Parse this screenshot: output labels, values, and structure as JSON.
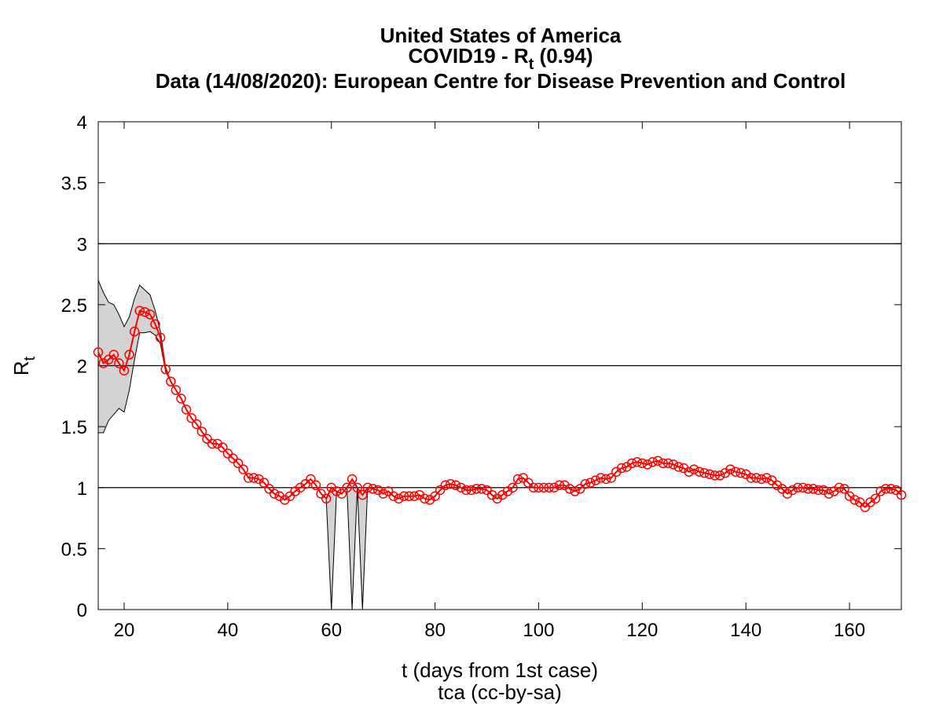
{
  "chart_data": {
    "type": "line",
    "title_line1": "United States of America",
    "title_line2": {
      "text": "COVID19 - R",
      "subscript": "t",
      "suffix": " (0.94)"
    },
    "title_line3": "Data (14/08/2020): European Centre for Disease Prevention and Control",
    "xlabel": "t (days from 1st case)",
    "ylabel": {
      "text": "R",
      "subscript": "t"
    },
    "caption": "tca (cc-by-sa)",
    "xlim": [
      15,
      170
    ],
    "ylim": [
      0,
      4
    ],
    "xticks": [
      20,
      40,
      60,
      80,
      100,
      120,
      140,
      160
    ],
    "yticks": [
      0,
      0.5,
      1,
      1.5,
      2,
      2.5,
      3,
      3.5,
      4
    ],
    "reference_lines": [
      1,
      2,
      3
    ],
    "color": "#ff0000",
    "band_color": "#d3d3d3",
    "x": [
      15,
      16,
      17,
      18,
      19,
      20,
      21,
      22,
      23,
      24,
      25,
      26,
      27,
      28,
      29,
      30,
      31,
      32,
      33,
      34,
      35,
      36,
      37,
      38,
      39,
      40,
      41,
      42,
      43,
      44,
      45,
      46,
      47,
      48,
      49,
      50,
      51,
      52,
      53,
      54,
      55,
      56,
      57,
      58,
      59,
      60,
      61,
      62,
      63,
      64,
      65,
      66,
      67,
      68,
      69,
      70,
      71,
      72,
      73,
      74,
      75,
      76,
      77,
      78,
      79,
      80,
      81,
      82,
      83,
      84,
      85,
      86,
      87,
      88,
      89,
      90,
      91,
      92,
      93,
      94,
      95,
      96,
      97,
      98,
      99,
      100,
      101,
      102,
      103,
      104,
      105,
      106,
      107,
      108,
      109,
      110,
      111,
      112,
      113,
      114,
      115,
      116,
      117,
      118,
      119,
      120,
      121,
      122,
      123,
      124,
      125,
      126,
      127,
      128,
      129,
      130,
      131,
      132,
      133,
      134,
      135,
      136,
      137,
      138,
      139,
      140,
      141,
      142,
      143,
      144,
      145,
      146,
      147,
      148,
      149,
      150,
      151,
      152,
      153,
      154,
      155,
      156,
      157,
      158,
      159,
      160,
      161,
      162,
      163,
      164,
      165,
      166,
      167,
      168,
      169,
      170
    ],
    "values": [
      2.11,
      2.02,
      2.05,
      2.09,
      2.02,
      1.96,
      2.09,
      2.28,
      2.45,
      2.44,
      2.42,
      2.34,
      2.23,
      1.97,
      1.87,
      1.8,
      1.73,
      1.64,
      1.57,
      1.52,
      1.46,
      1.4,
      1.36,
      1.36,
      1.33,
      1.28,
      1.24,
      1.2,
      1.15,
      1.08,
      1.08,
      1.07,
      1.04,
      0.99,
      0.95,
      0.93,
      0.9,
      0.93,
      0.97,
      1.0,
      1.03,
      1.07,
      1.02,
      0.95,
      0.91,
      1.0,
      0.97,
      0.95,
      1.0,
      1.07,
      1.0,
      0.94,
      1.0,
      0.99,
      0.98,
      0.95,
      0.97,
      0.93,
      0.91,
      0.93,
      0.93,
      0.93,
      0.94,
      0.91,
      0.9,
      0.93,
      0.98,
      1.02,
      1.03,
      1.02,
      1.0,
      0.98,
      0.98,
      0.99,
      0.99,
      0.98,
      0.94,
      0.91,
      0.94,
      0.97,
      1.0,
      1.07,
      1.08,
      1.04,
      1.0,
      1.0,
      1.0,
      1.0,
      1.0,
      1.02,
      1.02,
      0.99,
      0.97,
      0.99,
      1.03,
      1.04,
      1.06,
      1.08,
      1.07,
      1.08,
      1.13,
      1.16,
      1.17,
      1.2,
      1.21,
      1.2,
      1.19,
      1.21,
      1.22,
      1.2,
      1.2,
      1.19,
      1.17,
      1.16,
      1.13,
      1.15,
      1.13,
      1.12,
      1.11,
      1.1,
      1.1,
      1.12,
      1.15,
      1.13,
      1.12,
      1.11,
      1.08,
      1.08,
      1.07,
      1.08,
      1.06,
      1.02,
      0.99,
      0.95,
      0.98,
      1.0,
      1.0,
      0.99,
      0.99,
      0.98,
      0.98,
      0.95,
      0.97,
      1.0,
      0.99,
      0.93,
      0.9,
      0.88,
      0.84,
      0.88,
      0.91,
      0.97,
      0.99,
      0.99,
      0.98,
      0.94
    ],
    "lower": [
      1.45,
      1.45,
      1.55,
      1.6,
      1.65,
      1.62,
      1.8,
      2.05,
      2.27,
      2.27,
      2.28,
      2.25,
      2.18,
      1.95,
      1.87,
      1.8,
      1.73,
      1.64,
      1.57,
      1.52,
      1.46,
      1.4,
      1.36,
      1.36,
      1.33,
      1.28,
      1.24,
      1.2,
      1.15,
      1.08,
      1.08,
      1.07,
      1.04,
      0.99,
      0.95,
      0.93,
      0.9,
      0.93,
      0.97,
      1.0,
      1.03,
      1.07,
      1.02,
      0.95,
      0.91,
      0,
      0.97,
      0.95,
      1.0,
      0,
      1.0,
      0,
      1.0,
      0.99,
      0.98,
      0.95,
      0.97,
      0.93,
      0.91,
      0.93,
      0.93,
      0.93,
      0.94,
      0.91,
      0.9,
      0.93,
      0.98,
      1.02,
      1.03,
      1.02,
      1.0,
      0.98,
      0.98,
      0.99,
      0.99,
      0.98,
      0.94,
      0.91,
      0.94,
      0.97,
      1.0,
      1.07,
      1.08,
      1.04,
      1.0,
      1.0,
      1.0,
      1.0,
      1.0,
      1.02,
      1.02,
      0.99,
      0.97,
      0.99,
      1.03,
      1.04,
      1.06,
      1.08,
      1.07,
      1.08,
      1.13,
      1.16,
      1.17,
      1.2,
      1.21,
      1.2,
      1.19,
      1.21,
      1.22,
      1.2,
      1.2,
      1.19,
      1.17,
      1.16,
      1.13,
      1.15,
      1.13,
      1.12,
      1.11,
      1.1,
      1.1,
      1.12,
      1.15,
      1.13,
      1.12,
      1.11,
      1.08,
      1.08,
      1.07,
      1.08,
      1.06,
      1.02,
      0.99,
      0.95,
      0.98,
      1.0,
      1.0,
      0.99,
      0.99,
      0.98,
      0.98,
      0.95,
      0.97,
      1.0,
      0.99,
      0.93,
      0.9,
      0.88,
      0.84,
      0.88,
      0.91,
      0.97,
      0.99,
      0.99,
      0.98,
      0.94
    ],
    "upper": [
      2.7,
      2.6,
      2.52,
      2.5,
      2.42,
      2.32,
      2.4,
      2.55,
      2.66,
      2.62,
      2.58,
      2.45,
      2.28,
      1.99,
      1.87,
      1.8,
      1.73,
      1.64,
      1.57,
      1.52,
      1.46,
      1.4,
      1.36,
      1.36,
      1.33,
      1.28,
      1.24,
      1.2,
      1.15,
      1.08,
      1.08,
      1.07,
      1.04,
      0.99,
      0.95,
      0.93,
      0.9,
      0.93,
      0.97,
      1.0,
      1.03,
      1.07,
      1.02,
      0.95,
      0.91,
      1.0,
      0.97,
      0.95,
      1.0,
      1.07,
      1.0,
      0.94,
      1.0,
      0.99,
      0.98,
      0.95,
      0.97,
      0.93,
      0.91,
      0.93,
      0.93,
      0.93,
      0.94,
      0.91,
      0.9,
      0.93,
      0.98,
      1.02,
      1.03,
      1.02,
      1.0,
      0.98,
      0.98,
      0.99,
      0.99,
      0.98,
      0.94,
      0.91,
      0.94,
      0.97,
      1.0,
      1.07,
      1.08,
      1.04,
      1.0,
      1.0,
      1.0,
      1.0,
      1.0,
      1.02,
      1.02,
      0.99,
      0.97,
      0.99,
      1.03,
      1.04,
      1.06,
      1.08,
      1.07,
      1.08,
      1.13,
      1.16,
      1.17,
      1.2,
      1.21,
      1.2,
      1.19,
      1.21,
      1.22,
      1.2,
      1.2,
      1.19,
      1.17,
      1.16,
      1.13,
      1.15,
      1.13,
      1.12,
      1.11,
      1.1,
      1.1,
      1.12,
      1.15,
      1.13,
      1.12,
      1.11,
      1.08,
      1.08,
      1.07,
      1.08,
      1.06,
      1.02,
      0.99,
      0.95,
      0.98,
      1.0,
      1.0,
      0.99,
      0.99,
      0.98,
      0.98,
      0.95,
      0.97,
      1.0,
      0.99,
      0.93,
      0.9,
      0.88,
      0.84,
      0.88,
      0.91,
      0.97,
      0.99,
      0.99,
      0.98,
      0.94
    ]
  }
}
